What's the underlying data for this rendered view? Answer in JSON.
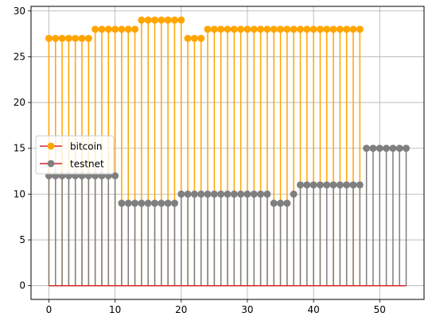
{
  "chart_data": {
    "type": "stem",
    "title": "",
    "xlabel": "",
    "ylabel": "",
    "grid": true,
    "legend_placement": "center-left",
    "xlim": [
      -2.7,
      56.7
    ],
    "ylim": [
      -1.5,
      30.5
    ],
    "xticks": [
      "0",
      "10",
      "20",
      "30",
      "40",
      "50"
    ],
    "yticks": [
      "0",
      "5",
      "10",
      "15",
      "20",
      "25",
      "30"
    ],
    "baseline": {
      "value": 0,
      "color": "#d62728"
    },
    "series": [
      {
        "name": "bitcoin",
        "color": "#ffa500",
        "x": [
          0,
          1,
          2,
          3,
          4,
          5,
          6,
          7,
          8,
          9,
          10,
          11,
          12,
          13,
          14,
          15,
          16,
          17,
          18,
          19,
          20,
          21,
          22,
          23,
          24,
          25,
          26,
          27,
          28,
          29,
          30,
          31,
          32,
          33,
          34,
          35,
          36,
          37,
          38,
          39,
          40,
          41,
          42,
          43,
          44,
          45,
          46,
          47
        ],
        "values": [
          27,
          27,
          27,
          27,
          27,
          27,
          27,
          28,
          28,
          28,
          28,
          28,
          28,
          28,
          29,
          29,
          29,
          29,
          29,
          29,
          29,
          27,
          27,
          27,
          28,
          28,
          28,
          28,
          28,
          28,
          28,
          28,
          28,
          28,
          28,
          28,
          28,
          28,
          28,
          28,
          28,
          28,
          28,
          28,
          28,
          28,
          28,
          28
        ]
      },
      {
        "name": "testnet",
        "color": "#7f7f7f",
        "x": [
          0,
          1,
          2,
          3,
          4,
          5,
          6,
          7,
          8,
          9,
          10,
          11,
          12,
          13,
          14,
          15,
          16,
          17,
          18,
          19,
          20,
          21,
          22,
          23,
          24,
          25,
          26,
          27,
          28,
          29,
          30,
          31,
          32,
          33,
          34,
          35,
          36,
          37,
          38,
          39,
          40,
          41,
          42,
          43,
          44,
          45,
          46,
          47,
          48,
          49,
          50,
          51,
          52,
          53,
          54
        ],
        "values": [
          12,
          12,
          12,
          12,
          12,
          12,
          12,
          12,
          12,
          12,
          12,
          9,
          9,
          9,
          9,
          9,
          9,
          9,
          9,
          9,
          10,
          10,
          10,
          10,
          10,
          10,
          10,
          10,
          10,
          10,
          10,
          10,
          10,
          10,
          9,
          9,
          9,
          10,
          11,
          11,
          11,
          11,
          11,
          11,
          11,
          11,
          11,
          11,
          15,
          15,
          15,
          15,
          15,
          15,
          15
        ]
      }
    ]
  }
}
